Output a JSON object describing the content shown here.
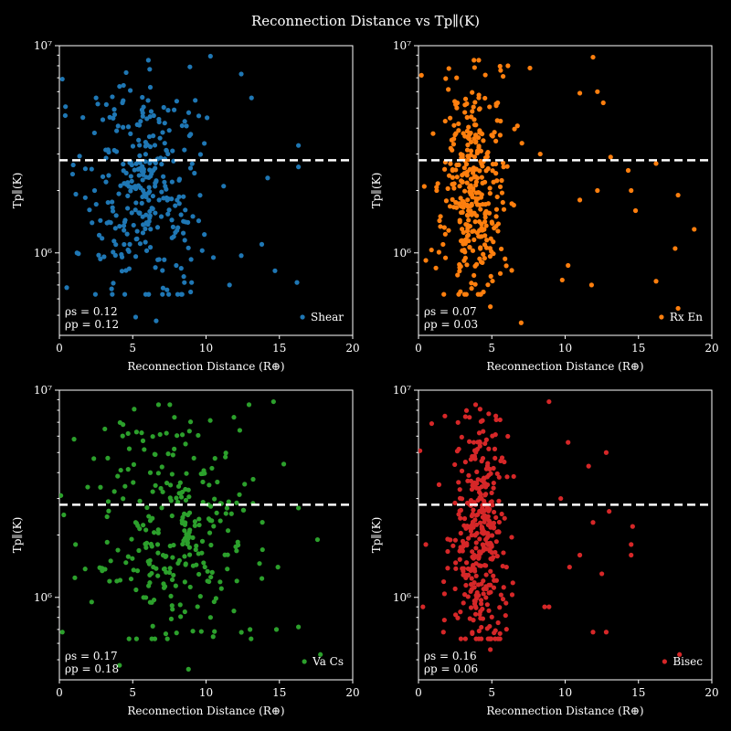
{
  "title": "Reconnection Distance vs Tp∥(K)",
  "chart_data": [
    {
      "type": "scatter",
      "series": [
        {
          "name": "Shear",
          "color": "#1f77b4"
        }
      ],
      "xlabel": "Reconnection Distance (R⊕)",
      "ylabel": "Tp∥(K)",
      "xlim": [
        0,
        20
      ],
      "ylim": [
        400000,
        10000000
      ],
      "yscale": "log",
      "xticks": [
        "0",
        "5",
        "10",
        "15",
        "20"
      ],
      "yticks": [
        "10⁶",
        "10⁷"
      ],
      "threshold": 2800000,
      "stats": {
        "rho_s": "ρs = 0.12",
        "rho_p": "ρp = 0.12"
      },
      "legend": "lower right",
      "sample_points": [
        [
          0.2,
          6900000.0
        ],
        [
          0.4,
          4600000.0
        ],
        [
          1.6,
          4500000.0
        ],
        [
          2.5,
          5600000.0
        ],
        [
          3.2,
          5200000.0
        ],
        [
          4.3,
          5300000.0
        ],
        [
          5.4,
          3500000.0
        ],
        [
          6.2,
          6300000.0
        ],
        [
          6.4,
          2500000.0
        ],
        [
          7.4,
          3000000.0
        ],
        [
          8.0,
          5400000.0
        ],
        [
          8.9,
          7900000.0
        ],
        [
          10.3,
          8900000.0
        ],
        [
          11.2,
          2100000.0
        ],
        [
          12.4,
          7300000.0
        ],
        [
          13.1,
          5600000.0
        ],
        [
          14.2,
          2300000.0
        ],
        [
          16.3,
          3300000.0
        ],
        [
          16.3,
          2600000.0
        ],
        [
          16.2,
          720000.0
        ],
        [
          14.7,
          820000.0
        ],
        [
          11.6,
          700000.0
        ],
        [
          10.5,
          950000.0
        ],
        [
          12.4,
          970000.0
        ],
        [
          13.8,
          1100000.0
        ],
        [
          5.2,
          490000.0
        ],
        [
          6.6,
          470000.0
        ],
        [
          4.8,
          1100000.0
        ],
        [
          2.4,
          2000000.0
        ],
        [
          0.9,
          2400000.0
        ],
        [
          3.5,
          1400000.0
        ],
        [
          6.8,
          1800000.0
        ],
        [
          9.1,
          1500000.0
        ],
        [
          7.8,
          1200000.0
        ],
        [
          1.2,
          1000000.0
        ],
        [
          0.5,
          680000.0
        ]
      ]
    },
    {
      "type": "scatter",
      "series": [
        {
          "name": "Rx En",
          "color": "#ff7f0e"
        }
      ],
      "xlabel": "Reconnection Distance (R⊕)",
      "ylabel": "Tp∥(K)",
      "xlim": [
        0,
        20
      ],
      "ylim": [
        400000,
        10000000
      ],
      "yscale": "log",
      "xticks": [
        "0",
        "5",
        "10",
        "15",
        "20"
      ],
      "yticks": [
        "10⁶",
        "10⁷"
      ],
      "threshold": 2800000,
      "stats": {
        "rho_s": "ρs = 0.07",
        "rho_p": "ρp = 0.03"
      },
      "legend": "lower right",
      "sample_points": [
        [
          0.2,
          7200000.0
        ],
        [
          2.6,
          7000000.0
        ],
        [
          5.6,
          7600000.0
        ],
        [
          6.1,
          8000000.0
        ],
        [
          7.6,
          7800000.0
        ],
        [
          11.9,
          8800000.0
        ],
        [
          11.0,
          5900000.0
        ],
        [
          12.2,
          6000000.0
        ],
        [
          12.6,
          5300000.0
        ],
        [
          13.1,
          2900000.0
        ],
        [
          14.3,
          2500000.0
        ],
        [
          14.5,
          2000000.0
        ],
        [
          14.8,
          1600000.0
        ],
        [
          16.2,
          2700000.0
        ],
        [
          17.7,
          1900000.0
        ],
        [
          18.8,
          1300000.0
        ],
        [
          17.5,
          1050000.0
        ],
        [
          16.2,
          730000.0
        ],
        [
          17.7,
          540000.0
        ],
        [
          11.8,
          700000.0
        ],
        [
          9.8,
          740000.0
        ],
        [
          7.0,
          460000.0
        ],
        [
          4.9,
          550000.0
        ],
        [
          10.2,
          870000.0
        ],
        [
          11.0,
          1800000.0
        ],
        [
          12.2,
          2000000.0
        ],
        [
          8.3,
          3000000.0
        ],
        [
          5.4,
          5300000.0
        ],
        [
          3.8,
          4400000.0
        ],
        [
          2.2,
          3200000.0
        ],
        [
          1.5,
          1500000.0
        ],
        [
          4.3,
          1200000.0
        ],
        [
          6.5,
          1700000.0
        ],
        [
          0.5,
          920000.0
        ],
        [
          3.0,
          2200000.0
        ],
        [
          5.8,
          2600000.0
        ]
      ]
    },
    {
      "type": "scatter",
      "series": [
        {
          "name": "Va Cs",
          "color": "#2ca02c"
        }
      ],
      "xlabel": "Reconnection Distance (R⊕)",
      "ylabel": "Tp∥(K)",
      "xlim": [
        0,
        20
      ],
      "ylim": [
        400000,
        10000000
      ],
      "yscale": "log",
      "xticks": [
        "0",
        "5",
        "10",
        "15",
        "20"
      ],
      "yticks": [
        "10⁶",
        "10⁷"
      ],
      "threshold": 2800000,
      "stats": {
        "rho_s": "ρs = 0.17",
        "rho_p": "ρp = 0.18"
      },
      "legend": "lower right",
      "sample_points": [
        [
          0.1,
          3100000.0
        ],
        [
          0.2,
          680000.0
        ],
        [
          1.0,
          5800000.0
        ],
        [
          3.1,
          6500000.0
        ],
        [
          5.1,
          8100000.0
        ],
        [
          5.7,
          5700000.0
        ],
        [
          7.3,
          6200000.0
        ],
        [
          8.6,
          5500000.0
        ],
        [
          11.9,
          7400000.0
        ],
        [
          12.3,
          6400000.0
        ],
        [
          14.6,
          8800000.0
        ],
        [
          15.3,
          4400000.0
        ],
        [
          16.3,
          2700000.0
        ],
        [
          17.6,
          1900000.0
        ],
        [
          17.8,
          530000.0
        ],
        [
          16.3,
          720000.0
        ],
        [
          14.8,
          700000.0
        ],
        [
          13.0,
          700000.0
        ],
        [
          11.9,
          860000.0
        ],
        [
          12.1,
          1200000.0
        ],
        [
          14.9,
          1400000.0
        ],
        [
          10.1,
          1200000.0
        ],
        [
          11.5,
          2100000.0
        ],
        [
          8.8,
          3300000.0
        ],
        [
          10.4,
          4200000.0
        ],
        [
          6.7,
          1800000.0
        ],
        [
          5.2,
          2300000.0
        ],
        [
          4.1,
          470000.0
        ],
        [
          8.8,
          450000.0
        ],
        [
          2.2,
          950000.0
        ],
        [
          3.5,
          1500000.0
        ],
        [
          1.1,
          1800000.0
        ],
        [
          0.3,
          2500000.0
        ],
        [
          2.8,
          3400000.0
        ],
        [
          6.2,
          4000000.0
        ],
        [
          9.3,
          1700000.0
        ]
      ]
    },
    {
      "type": "scatter",
      "series": [
        {
          "name": "Bisec",
          "color": "#d62728"
        }
      ],
      "xlabel": "Reconnection Distance (R⊕)",
      "ylabel": "Tp∥(K)",
      "xlim": [
        0,
        20
      ],
      "ylim": [
        400000,
        10000000
      ],
      "yscale": "log",
      "xticks": [
        "0",
        "5",
        "10",
        "15",
        "20"
      ],
      "yticks": [
        "10⁶",
        "10⁷"
      ],
      "threshold": 2800000,
      "stats": {
        "rho_s": "ρs = 0.16",
        "rho_p": "ρp = 0.06"
      },
      "legend": "lower right",
      "sample_points": [
        [
          0.1,
          5100000.0
        ],
        [
          0.9,
          6900000.0
        ],
        [
          1.8,
          7500000.0
        ],
        [
          4.2,
          8100000.0
        ],
        [
          5.3,
          7200000.0
        ],
        [
          8.9,
          8800000.0
        ],
        [
          10.2,
          5600000.0
        ],
        [
          11.6,
          4300000.0
        ],
        [
          12.8,
          5000000.0
        ],
        [
          13.0,
          2600000.0
        ],
        [
          14.6,
          2200000.0
        ],
        [
          14.5,
          1800000.0
        ],
        [
          14.5,
          1600000.0
        ],
        [
          11.0,
          1600000.0
        ],
        [
          11.9,
          2300000.0
        ],
        [
          8.6,
          900000.0
        ],
        [
          8.9,
          900000.0
        ],
        [
          11.9,
          680000.0
        ],
        [
          12.8,
          680000.0
        ],
        [
          17.8,
          530000.0
        ],
        [
          10.3,
          1400000.0
        ],
        [
          12.5,
          1300000.0
        ],
        [
          4.9,
          560000.0
        ],
        [
          1.7,
          680000.0
        ],
        [
          5.2,
          5200000.0
        ],
        [
          5.5,
          3800000.0
        ],
        [
          4.5,
          2400000.0
        ],
        [
          3.8,
          1600000.0
        ],
        [
          2.5,
          1100000.0
        ],
        [
          1.4,
          3500000.0
        ],
        [
          0.5,
          1800000.0
        ],
        [
          6.0,
          1400000.0
        ],
        [
          3.2,
          4500000.0
        ],
        [
          5.0,
          2900000.0
        ],
        [
          9.7,
          3000000.0
        ],
        [
          0.3,
          900000.0
        ]
      ]
    }
  ]
}
